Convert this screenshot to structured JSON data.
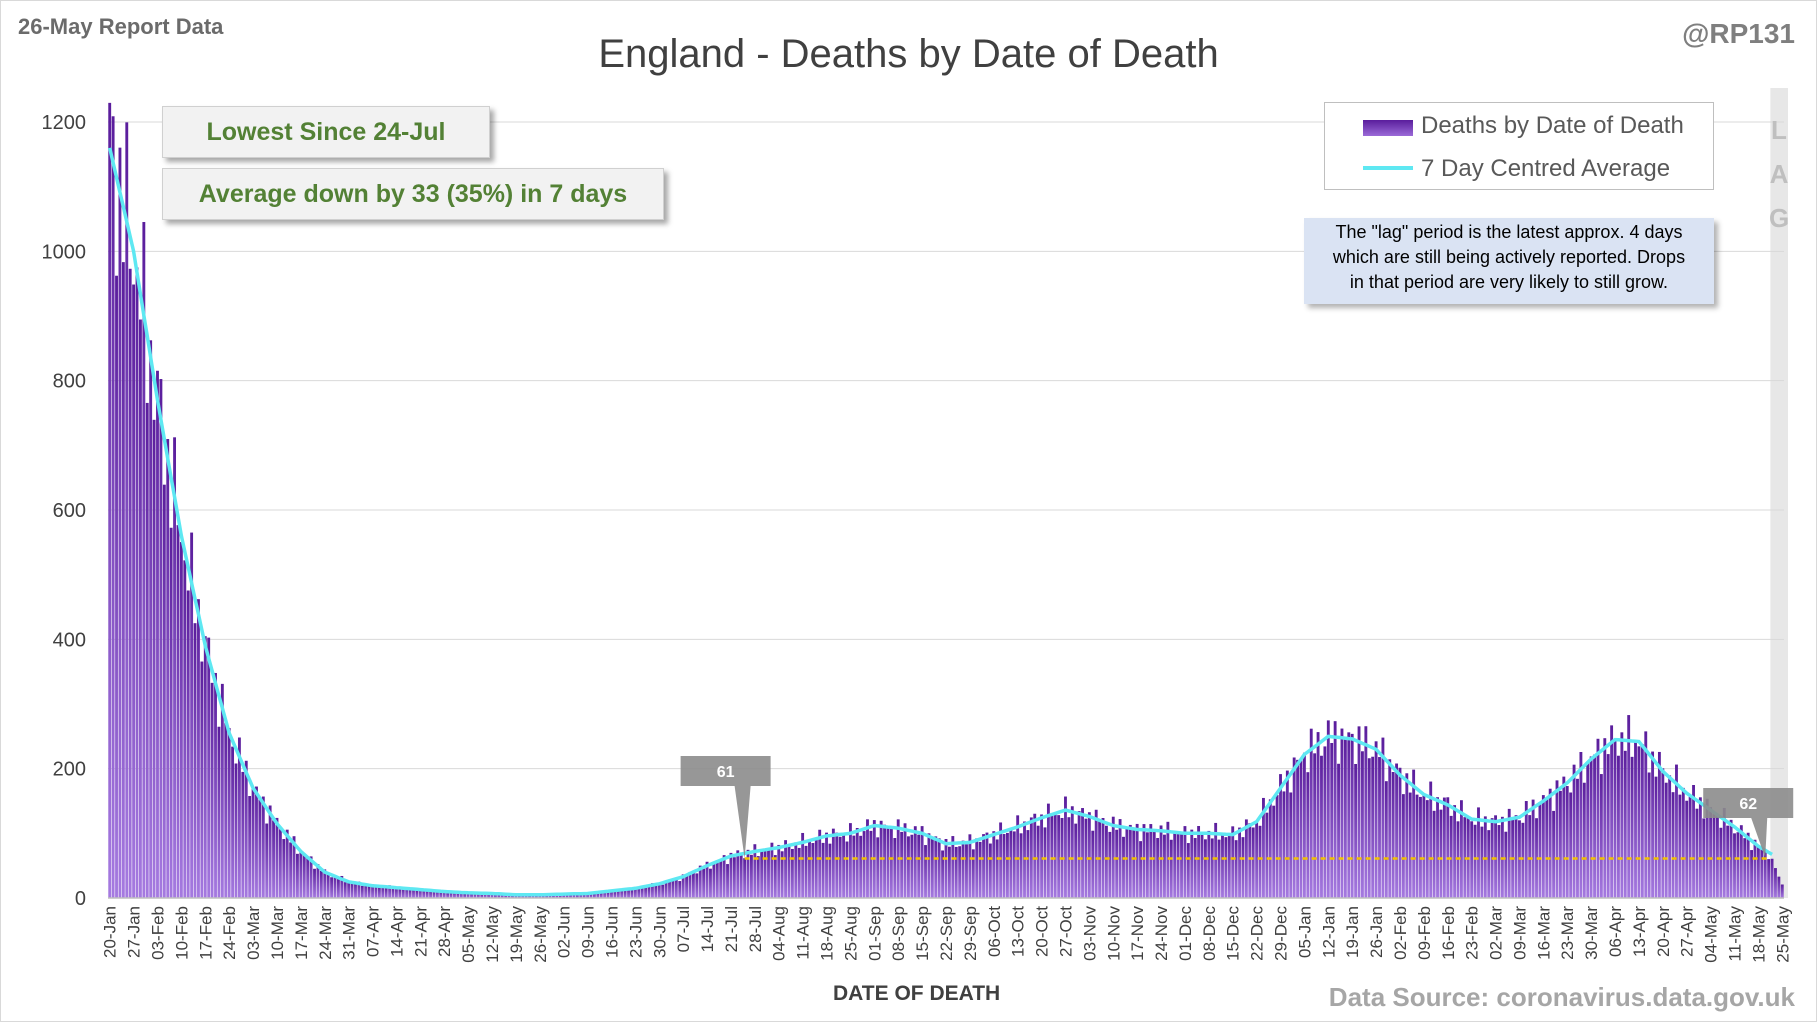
{
  "header": {
    "report_label": "26-May Report Data",
    "handle": "@RP131",
    "title": "England - Deaths by Date of Death"
  },
  "callouts": {
    "lowest": "Lowest Since 24-Jul",
    "average": "Average down by 33 (35%) in 7 days"
  },
  "legend": {
    "bars_label": "Deaths by Date of Death",
    "line_label": "7 Day Centred Average"
  },
  "note": {
    "lines": [
      "The \"lag\" period is the latest approx. 4 days",
      "which are still being actively reported.  Drops",
      "in that period are very likely to still grow."
    ]
  },
  "lag_letters": [
    "L",
    "A",
    "G"
  ],
  "footer": {
    "xaxis_title": "DATE OF DEATH",
    "source": "Data Source: coronavirus.data.gov.uk"
  },
  "colors": {
    "bar_dark": "#5a1d9c",
    "bar_light": "#a57ae0",
    "average_line": "#5ee8f2",
    "reference_line": "#f2c200",
    "callout_text": "#538135",
    "marker_fill": "#8c8c8c"
  },
  "chart_data": {
    "type": "bar",
    "title": "England - Deaths by Date of Death",
    "xlabel": "DATE OF DEATH",
    "ylabel": "",
    "ylim": [
      0,
      1200
    ],
    "yticks": [
      0,
      200,
      400,
      600,
      800,
      1000,
      1200
    ],
    "start_date": "20-Jan",
    "end_date": "25-May",
    "grid": true,
    "legend_position": "top-right",
    "x_tick_labels": [
      "20-Jan",
      "27-Jan",
      "03-Feb",
      "10-Feb",
      "17-Feb",
      "24-Feb",
      "03-Mar",
      "10-Mar",
      "17-Mar",
      "24-Mar",
      "31-Mar",
      "07-Apr",
      "14-Apr",
      "21-Apr",
      "28-Apr",
      "05-May",
      "12-May",
      "19-May",
      "26-May",
      "02-Jun",
      "09-Jun",
      "16-Jun",
      "23-Jun",
      "30-Jun",
      "07-Jul",
      "14-Jul",
      "21-Jul",
      "28-Jul",
      "04-Aug",
      "11-Aug",
      "18-Aug",
      "25-Aug",
      "01-Sep",
      "08-Sep",
      "15-Sep",
      "22-Sep",
      "29-Sep",
      "06-Oct",
      "13-Oct",
      "20-Oct",
      "27-Oct",
      "03-Nov",
      "10-Nov",
      "17-Nov",
      "24-Nov",
      "01-Dec",
      "08-Dec",
      "15-Dec",
      "22-Dec",
      "29-Dec",
      "05-Jan",
      "12-Jan",
      "19-Jan",
      "26-Jan",
      "02-Feb",
      "09-Feb",
      "16-Feb",
      "23-Feb",
      "02-Mar",
      "09-Mar",
      "16-Mar",
      "23-Mar",
      "30-Mar",
      "06-Apr",
      "13-Apr",
      "20-Apr",
      "27-Apr",
      "04-May",
      "11-May",
      "18-May",
      "25-May"
    ],
    "average_weekly": [
      1160,
      1000,
      770,
      560,
      390,
      255,
      170,
      115,
      72,
      40,
      25,
      19,
      16,
      13,
      10,
      8,
      7,
      5,
      5,
      6,
      7,
      11,
      15,
      22,
      33,
      50,
      65,
      72,
      78,
      86,
      96,
      100,
      112,
      108,
      100,
      84,
      86,
      98,
      110,
      124,
      136,
      126,
      112,
      106,
      104,
      100,
      100,
      98,
      118,
      170,
      222,
      250,
      246,
      230,
      190,
      160,
      144,
      122,
      118,
      125,
      150,
      178,
      215,
      245,
      242,
      196,
      162,
      136,
      110,
      80,
      58
    ],
    "markers": [
      {
        "label": "61",
        "value": 61,
        "date": "24-Jul"
      },
      {
        "label": "62",
        "value": 62,
        "date": "18-May"
      }
    ],
    "reference_value": 61,
    "lag_days": 4,
    "series": [
      {
        "name": "Deaths by Date of Death",
        "kind": "bar"
      },
      {
        "name": "7 Day Centred Average",
        "kind": "line"
      }
    ]
  }
}
